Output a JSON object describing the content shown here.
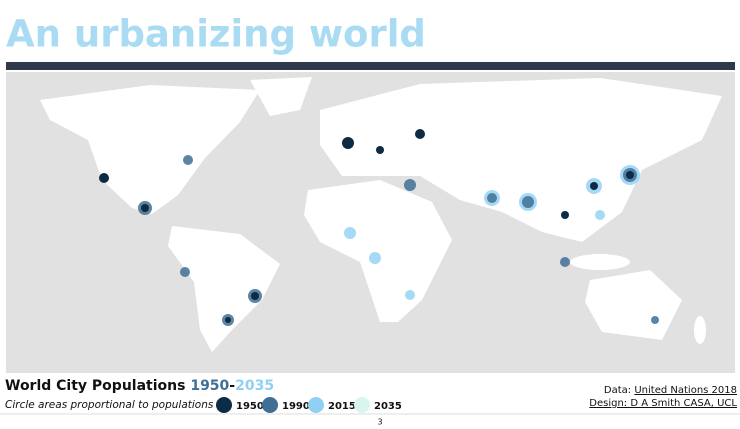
{
  "header": {
    "title": "An urbanizing world"
  },
  "map": {
    "title": "World City Populations ",
    "title_start": "1950",
    "title_dash": "-",
    "title_end": "2035",
    "subtitle": "Circle areas proportional to populations in:",
    "legend": [
      {
        "label": "1950",
        "color": "#0d2b42"
      },
      {
        "label": "1990",
        "color": "#3f6f94"
      },
      {
        "label": "2015",
        "color": "#90d0f2"
      },
      {
        "label": "2035",
        "color": "#d9f6ee"
      }
    ]
  },
  "credits": {
    "data_prefix": "Data: ",
    "data_source": "United Nations 2018",
    "design": "Design: D A Smith CASA, UCL"
  },
  "page_number": "3"
}
